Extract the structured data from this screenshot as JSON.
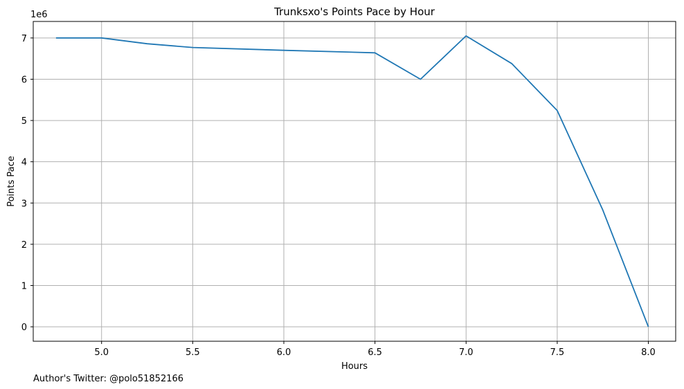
{
  "chart_data": {
    "type": "line",
    "title": "Trunksxo's Points Pace by Hour",
    "xlabel": "Hours",
    "ylabel": "Points Pace",
    "y_offset_label": "1e6",
    "xlim": [
      4.625,
      8.15
    ],
    "ylim": [
      -350000,
      7400000
    ],
    "x_ticks": [
      5.0,
      5.5,
      6.0,
      6.5,
      7.0,
      7.5,
      8.0
    ],
    "x_tick_labels": [
      "5.0",
      "5.5",
      "6.0",
      "6.5",
      "7.0",
      "7.5",
      "8.0"
    ],
    "y_ticks": [
      0,
      1000000,
      2000000,
      3000000,
      4000000,
      5000000,
      6000000,
      7000000
    ],
    "y_tick_labels": [
      "0",
      "1",
      "2",
      "3",
      "4",
      "5",
      "6",
      "7"
    ],
    "grid": true,
    "line_color": "#1f77b4",
    "series": [
      {
        "x": [
          4.75,
          5.0,
          5.25,
          5.5,
          6.0,
          6.5,
          6.75,
          7.0,
          7.25,
          7.5,
          7.75,
          8.0
        ],
        "values": [
          7000000,
          7000000,
          6860000,
          6770000,
          6700000,
          6640000,
          6000000,
          7050000,
          6380000,
          5240000,
          2830000,
          0
        ]
      }
    ]
  },
  "footer": {
    "note": "Author's Twitter: @polo51852166"
  }
}
